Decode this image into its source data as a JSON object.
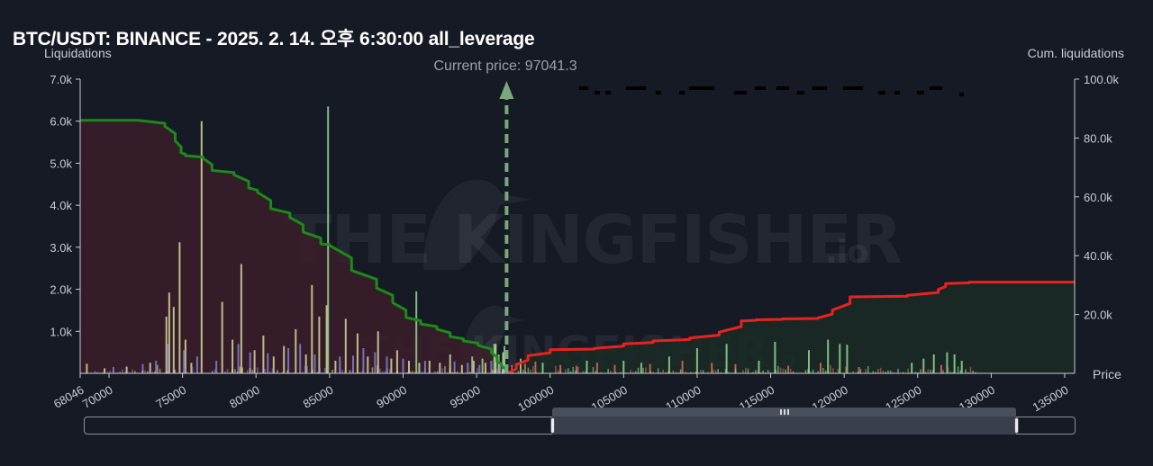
{
  "title": "BTC/USDT: BINANCE - 2025. 2. 14. 오후 6:30:00 all_leverage",
  "left_axis_title": "Liquidations",
  "right_axis_title": "Cum. liquidations",
  "x_axis_title": "Price",
  "current_price_label": "Current price: 97041.3",
  "watermark": {
    "main": "THE KINGFISHER",
    "suffix": ".io"
  },
  "colors": {
    "background": "#161a25",
    "long_cumulative": "#1b8a1b",
    "short_cumulative": "#e8231f",
    "long_area": "#3a1f2a",
    "short_area": "#1a2b25",
    "bars_yellow": "#e3e2a0",
    "bars_purple": "#8a86d8",
    "bars_green": "#9be39b",
    "bars_red": "#e07060",
    "current_price_line": "#7aa87a"
  },
  "chart_data": {
    "type": "bar+line",
    "title": "BTC/USDT: BINANCE - 2025. 2. 14. 오후 6:30:00 all_leverage",
    "xlabel": "Price",
    "ylabel_left": "Liquidations",
    "ylabel_right": "Cum. liquidations",
    "xlim": [
      68046,
      135900
    ],
    "ylim_left": [
      0,
      7000
    ],
    "ylim_right": [
      0,
      100000
    ],
    "x_ticks": [
      "68046",
      "70000",
      "75000",
      "80000",
      "85000",
      "90000",
      "95000",
      "100000",
      "105000",
      "110000",
      "115000",
      "120000",
      "125000",
      "130000",
      "135000"
    ],
    "y_left_ticks": [
      "7.0k",
      "6.0k",
      "5.0k",
      "4.0k",
      "3.0k",
      "2.0k",
      "1.0k"
    ],
    "y_right_ticks": [
      "100.0k",
      "80.0k",
      "60.0k",
      "40.0k",
      "20.0k"
    ],
    "current_price": 97041.3,
    "legend": "none",
    "grid": false,
    "series": [
      {
        "name": "long_cumulative",
        "type": "step-line",
        "color": "#1b8a1b",
        "x": [
          68046,
          72000,
          73800,
          74500,
          74900,
          75200,
          76400,
          77000,
          78500,
          79500,
          80100,
          81000,
          82300,
          83200,
          84400,
          85000,
          86500,
          88200,
          89300,
          90200,
          91200,
          92300,
          93200,
          94100,
          95100,
          96000,
          96400,
          96700,
          97041.3
        ],
        "values": [
          86000,
          86000,
          84000,
          79000,
          75000,
          74000,
          73000,
          69000,
          67500,
          63000,
          61500,
          56000,
          53000,
          48000,
          44000,
          43500,
          35000,
          29000,
          24000,
          19000,
          16800,
          15000,
          12500,
          11000,
          9500,
          7000,
          4000,
          2500,
          0
        ]
      },
      {
        "name": "short_cumulative",
        "type": "step-line",
        "color": "#e8231f",
        "x": [
          97041.3,
          97700,
          98500,
          100000,
          103000,
          105000,
          107000,
          109500,
          111500,
          113000,
          114000,
          115800,
          118200,
          119200,
          120400,
          124300,
          126400,
          126900,
          128500,
          135900
        ],
        "values": [
          0,
          3000,
          6000,
          8000,
          8500,
          10000,
          11000,
          12000,
          14000,
          17800,
          18200,
          18500,
          18800,
          21500,
          26000,
          26500,
          28500,
          30500,
          31000,
          31000
        ]
      },
      {
        "name": "liquidations_yellow",
        "type": "bar",
        "color": "#e3e2a0",
        "x": [
          68500,
          69700,
          71200,
          72800,
          73900,
          74100,
          74400,
          74800,
          75200,
          75600,
          76300,
          77700,
          78400,
          79000,
          79900,
          80500,
          81200,
          81900,
          82700,
          83400,
          83800,
          84300,
          84800,
          85400,
          86100,
          86900,
          87600,
          88300,
          89200,
          89600,
          90400,
          91100,
          91800,
          92500,
          93200,
          94000,
          94800,
          95600,
          96300,
          96800
        ],
        "values": [
          230,
          120,
          160,
          250,
          1350,
          1920,
          1580,
          3120,
          800,
          250,
          6000,
          1700,
          800,
          2600,
          550,
          900,
          400,
          650,
          1050,
          450,
          2100,
          1350,
          1620,
          300,
          1300,
          950,
          400,
          1000,
          350,
          550,
          300,
          250,
          300,
          250,
          450,
          200,
          300,
          250,
          700,
          500
        ]
      },
      {
        "name": "liquidations_purple",
        "type": "bar",
        "color": "#8a86d8",
        "x": [
          70300,
          72300,
          73200,
          74000,
          75100,
          76000,
          77300,
          78800,
          79600,
          80800,
          82200,
          83000,
          84000,
          85700,
          86600,
          87300,
          88100,
          88900,
          90000,
          91500,
          93500,
          94400,
          95200,
          96000,
          96600
        ],
        "values": [
          150,
          220,
          300,
          700,
          550,
          400,
          300,
          700,
          500,
          480,
          600,
          700,
          450,
          400,
          420,
          600,
          500,
          400,
          350,
          300,
          280,
          250,
          200,
          300,
          250
        ]
      },
      {
        "name": "liquidations_green",
        "type": "bar",
        "color": "#9be39b",
        "x": [
          84900,
          90900,
          94700,
          95400,
          96200,
          96500,
          96900,
          98000,
          99500,
          102500,
          105000,
          106200,
          108100,
          110000,
          112000,
          114200,
          115300,
          117600,
          118900,
          119700,
          120200,
          124600,
          125400,
          126100,
          127000,
          127500,
          128000
        ],
        "values": [
          6350,
          1950,
          400,
          350,
          700,
          450,
          650,
          350,
          250,
          300,
          300,
          250,
          400,
          600,
          700,
          300,
          750,
          550,
          800,
          700,
          680,
          250,
          350,
          450,
          500,
          450,
          300
        ]
      },
      {
        "name": "liquidations_red",
        "type": "bar",
        "color": "#e07060",
        "x": [
          97400,
          98300,
          99000,
          100700,
          101800,
          103200,
          104400,
          106800,
          109000,
          111000,
          112600,
          116200,
          118400,
          121000,
          126600
        ],
        "values": [
          200,
          230,
          280,
          200,
          180,
          250,
          200,
          220,
          300,
          250,
          220,
          180,
          250,
          150,
          200
        ]
      }
    ]
  }
}
